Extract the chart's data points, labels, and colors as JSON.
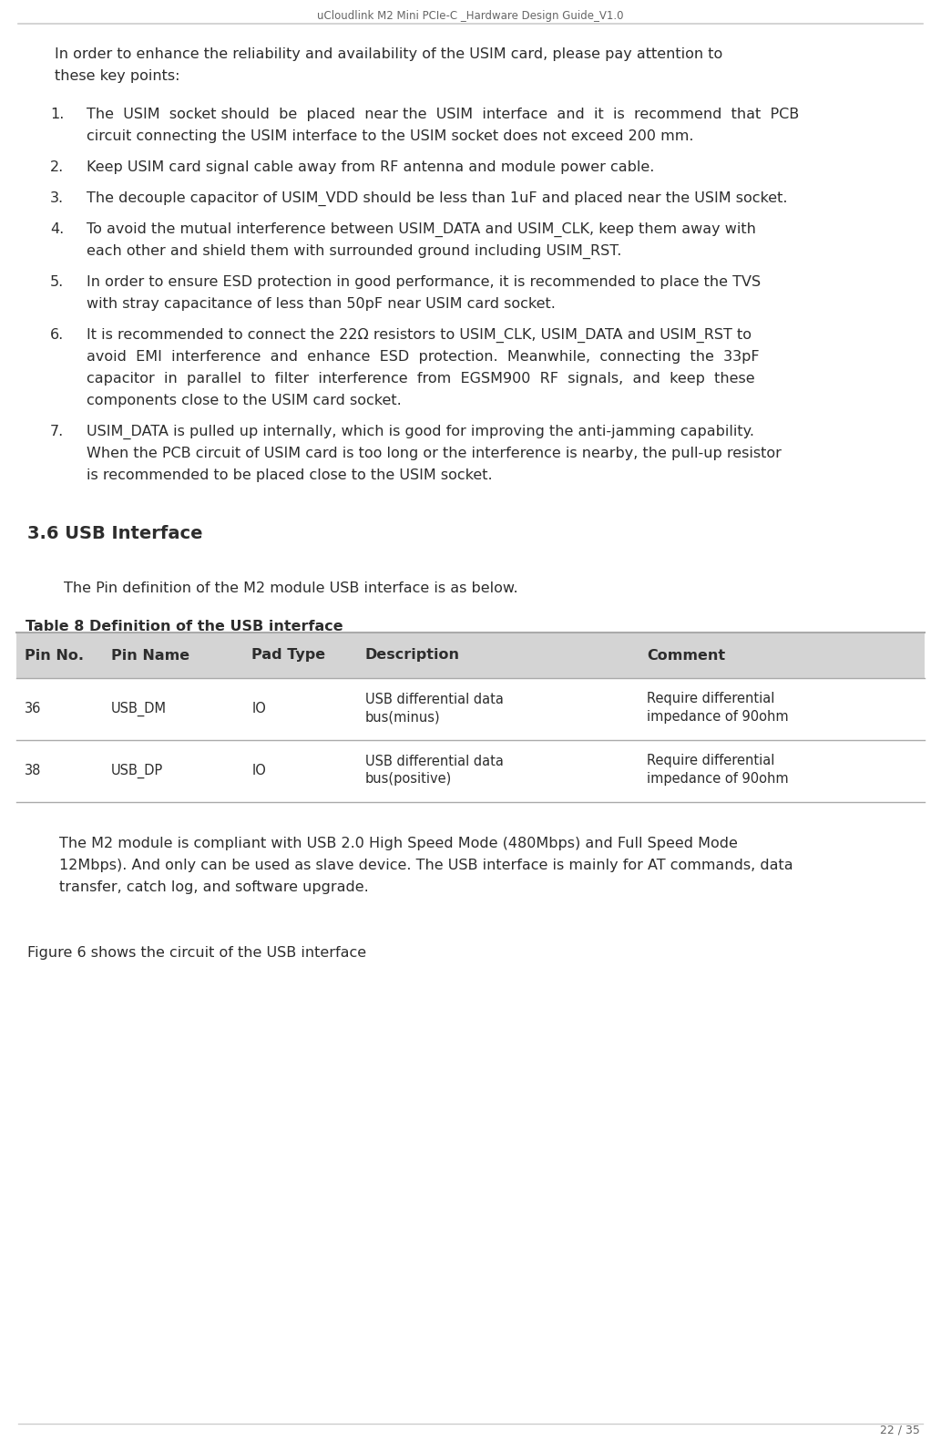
{
  "header_text": "uCloudlink M2 Mini PCIe-C _Hardware Design Guide_V1.0",
  "footer_text": "22 / 35",
  "background_color": "#ffffff",
  "header_line_color": "#cccccc",
  "footer_line_color": "#cccccc",
  "text_color": "#2d2d2d",
  "section_title": "3.6 USB Interface",
  "section_intro": "The Pin definition of the M2 module USB interface is as below.",
  "table_title": "Table 8 Definition of the USB interface",
  "table_header": [
    "Pin No.",
    "Pin Name",
    "Pad Type",
    "Description",
    "Comment"
  ],
  "table_rows": [
    [
      "36",
      "USB_DM",
      "IO",
      "USB differential data\nbus(minus)",
      "Require differential\nimpedance of 90ohm"
    ],
    [
      "38",
      "USB_DP",
      "IO",
      "USB differential data\nbus(positive)",
      "Require differential\nimpedance of 90ohm"
    ]
  ],
  "table_header_bg": "#d4d4d4",
  "table_border_color": "#aaaaaa",
  "closing_lines": [
    "The M2 module is compliant with USB 2.0 High Speed Mode (480Mbps) and Full Speed Mode",
    "12Mbps). And only can be used as slave device. The USB interface is mainly for AT commands, data",
    "transfer, catch log, and software upgrade."
  ],
  "figure_caption": "Figure 6 shows the circuit of the USB interface",
  "font_size_header": 8.5,
  "font_size_body": 11.5,
  "font_size_list": 11.5,
  "font_size_section": 14,
  "font_size_table_header": 11.5,
  "font_size_table_body": 10.5,
  "font_size_footer": 9
}
